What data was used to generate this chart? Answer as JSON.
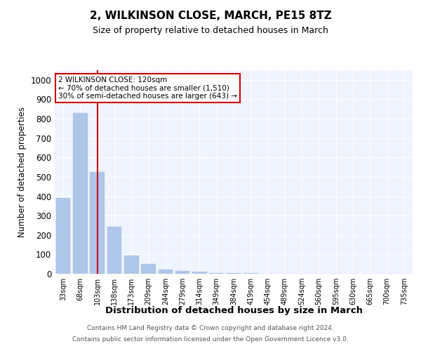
{
  "title": "2, WILKINSON CLOSE, MARCH, PE15 8TZ",
  "subtitle": "Size of property relative to detached houses in March",
  "xlabel": "Distribution of detached houses by size in March",
  "ylabel": "Number of detached properties",
  "footnote1": "Contains HM Land Registry data © Crown copyright and database right 2024.",
  "footnote2": "Contains public sector information licensed under the Open Government Licence v3.0.",
  "annotation_line1": "2 WILKINSON CLOSE: 120sqm",
  "annotation_line2": "← 70% of detached houses are smaller (1,510)",
  "annotation_line3": "30% of semi-detached houses are larger (643) →",
  "bar_color": "#aec6e8",
  "bar_edge_color": "#aec6e8",
  "red_line_color": "#cc0000",
  "annotation_box_color": "#cc0000",
  "categories": [
    "33sqm",
    "68sqm",
    "103sqm",
    "138sqm",
    "173sqm",
    "209sqm",
    "244sqm",
    "279sqm",
    "314sqm",
    "349sqm",
    "384sqm",
    "419sqm",
    "454sqm",
    "489sqm",
    "524sqm",
    "560sqm",
    "595sqm",
    "630sqm",
    "665sqm",
    "700sqm",
    "735sqm"
  ],
  "values": [
    390,
    830,
    525,
    243,
    95,
    50,
    20,
    15,
    10,
    5,
    5,
    5,
    0,
    0,
    0,
    0,
    0,
    0,
    0,
    0,
    0
  ],
  "red_line_index": 2,
  "ylim": [
    0,
    1050
  ],
  "yticks": [
    0,
    100,
    200,
    300,
    400,
    500,
    600,
    700,
    800,
    900,
    1000
  ],
  "bar_width": 0.85,
  "figsize": [
    6.0,
    5.0
  ],
  "dpi": 100,
  "bg_color": "#f0f4ff"
}
